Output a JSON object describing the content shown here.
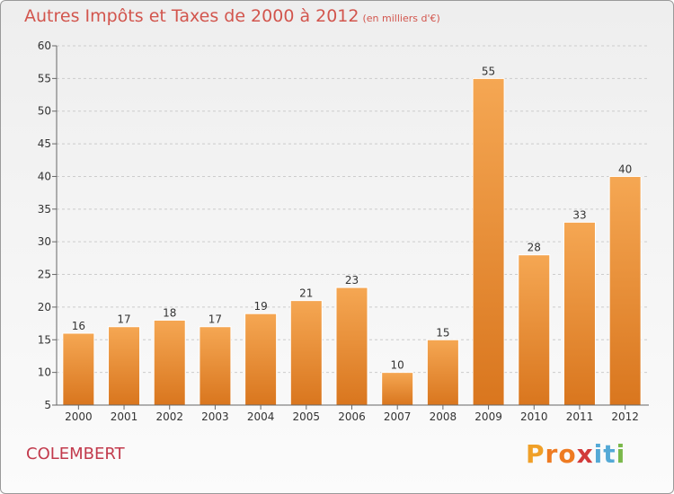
{
  "title": "Autres Impôts et Taxes de 2000 à 2012",
  "subtitle": "(en milliers d'€)",
  "place": "COLEMBERT",
  "logo": "Proxiti",
  "colors": {
    "title": "#d2554d",
    "place": "#c23a4c",
    "bar_light": "#f5a753",
    "bar_dark": "#d9761e",
    "grid": "#cccccc"
  },
  "chart_data": {
    "type": "bar",
    "title": "Autres Impôts et Taxes de 2000 à 2012",
    "subtitle": "(en milliers d'€)",
    "categories": [
      "2000",
      "2001",
      "2002",
      "2003",
      "2004",
      "2005",
      "2006",
      "2007",
      "2008",
      "2009",
      "2010",
      "2011",
      "2012"
    ],
    "values": [
      16,
      17,
      18,
      17,
      19,
      21,
      23,
      10,
      15,
      55,
      28,
      33,
      40
    ],
    "ylim": [
      5,
      60
    ],
    "yticks": [
      5,
      10,
      15,
      20,
      25,
      30,
      35,
      40,
      45,
      50,
      55,
      60
    ],
    "grid": "horizontal dashed",
    "data_labels": true
  }
}
